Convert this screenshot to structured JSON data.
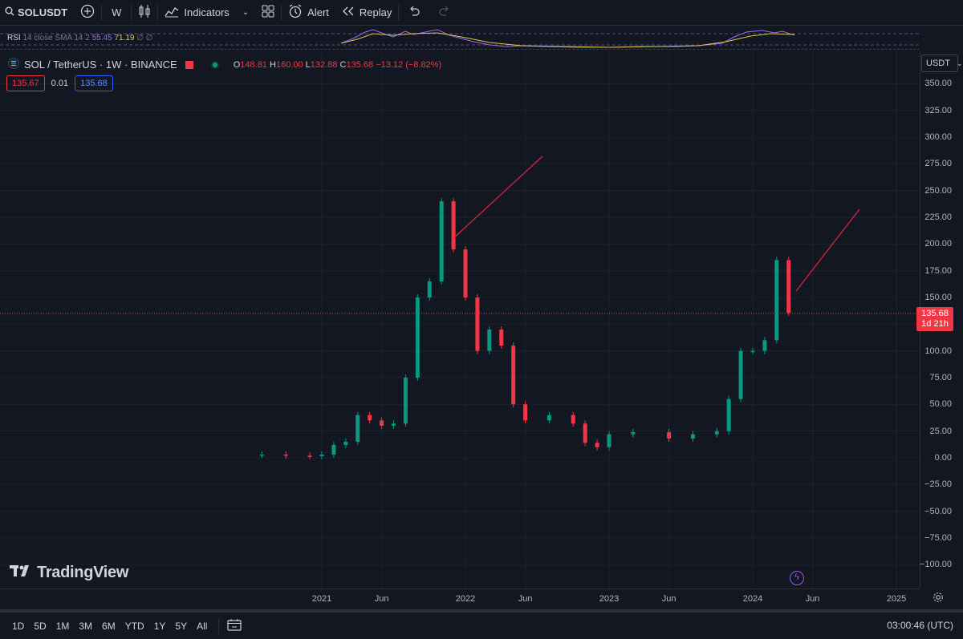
{
  "toolbar": {
    "symbol": "SOLUSDT",
    "interval": "W",
    "indicators_label": "Indicators",
    "alert_label": "Alert",
    "replay_label": "Replay"
  },
  "rsi": {
    "name": "RSI",
    "params": "14 close SMA 14 2",
    "value1": "55.45",
    "value2": "71.19",
    "extra": "∅ ∅"
  },
  "legend": {
    "title": "SOL / TetherUS · 1W · BINANCE",
    "open_label": "O",
    "open": "148.81",
    "high_label": "H",
    "high": "160.00",
    "low_label": "L",
    "low": "132.88",
    "close_label": "C",
    "close": "135.68",
    "change": "−13.12 (−8.82%)"
  },
  "price_boxes": {
    "bid": "135.67",
    "spread": "0.01",
    "ask": "135.68"
  },
  "currency": "USDT",
  "last_price": {
    "value": "135.68",
    "countdown": "1d 21h"
  },
  "colors": {
    "up": "#089981",
    "down": "#f23645",
    "accent": "#2962ff",
    "background": "#131722"
  },
  "brand": "TradingView",
  "ranges": [
    "1D",
    "5D",
    "1M",
    "3M",
    "6M",
    "YTD",
    "1Y",
    "5Y",
    "All"
  ],
  "clock": "03:00:46 (UTC)",
  "icons": [
    "search-icon",
    "plus-icon",
    "candles-icon",
    "indicators-icon",
    "layout-icon",
    "alert-icon",
    "replay-icon",
    "undo-icon",
    "redo-icon",
    "gear-icon",
    "calendar-icon",
    "lightning-icon"
  ],
  "chart_data": {
    "type": "line",
    "title": "SOL / TetherUS · 1W · BINANCE",
    "xlabel": "",
    "ylabel": "",
    "x_ticks": [
      "2021",
      "Jun",
      "2022",
      "Jun",
      "2023",
      "Jun",
      "2024",
      "Jun",
      "2025"
    ],
    "y_ticks": [
      "350.00",
      "325.00",
      "300.00",
      "275.00",
      "250.00",
      "225.00",
      "200.00",
      "175.00",
      "150.00",
      "125.00",
      "100.00",
      "75.00",
      "50.00",
      "25.00",
      "0.00",
      "−25.00",
      "−50.00",
      "−75.00",
      "−100.00"
    ],
    "ylim": [
      -110,
      365
    ],
    "xlim": [
      "2020-04",
      "2025-02"
    ],
    "grid": true,
    "series": [
      {
        "name": "",
        "x": [
          "2020-08",
          "2020-10",
          "2020-12",
          "2021-01",
          "2021-02",
          "2021-03",
          "2021-04",
          "2021-05",
          "2021-06",
          "2021-07",
          "2021-08",
          "2021-09",
          "2021-10",
          "2021-11",
          "2021-12",
          "2022-01",
          "2022-02",
          "2022-03",
          "2022-04",
          "2022-05",
          "2022-06",
          "2022-08",
          "2022-10",
          "2022-11",
          "2022-12",
          "2023-01",
          "2023-03",
          "2023-06",
          "2023-08",
          "2023-10",
          "2023-11",
          "2023-12",
          "2024-01",
          "2024-02",
          "2024-03",
          "2024-04"
        ],
        "values": [
          3,
          2,
          1.5,
          3,
          12,
          15,
          40,
          35,
          30,
          32,
          75,
          150,
          165,
          240,
          195,
          150,
          100,
          120,
          105,
          50,
          35,
          40,
          32,
          14,
          10,
          22,
          24,
          18,
          22,
          25,
          55,
          100,
          100,
          110,
          185,
          135.68
        ]
      }
    ]
  }
}
